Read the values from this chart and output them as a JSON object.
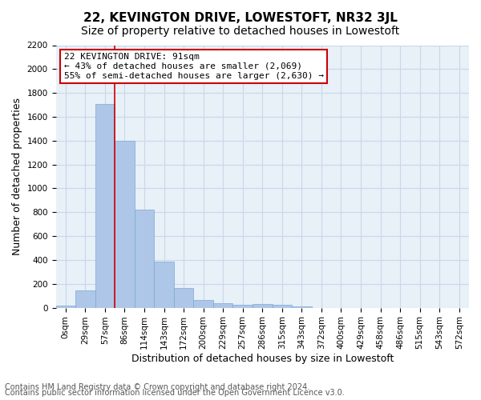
{
  "title": "22, KEVINGTON DRIVE, LOWESTOFT, NR32 3JL",
  "subtitle": "Size of property relative to detached houses in Lowestoft",
  "xlabel": "Distribution of detached houses by size in Lowestoft",
  "ylabel": "Number of detached properties",
  "footnote1": "Contains HM Land Registry data © Crown copyright and database right 2024.",
  "footnote2": "Contains public sector information licensed under the Open Government Licence v3.0.",
  "bin_labels": [
    "0sqm",
    "29sqm",
    "57sqm",
    "86sqm",
    "114sqm",
    "143sqm",
    "172sqm",
    "200sqm",
    "229sqm",
    "257sqm",
    "286sqm",
    "315sqm",
    "343sqm",
    "372sqm",
    "400sqm",
    "429sqm",
    "458sqm",
    "486sqm",
    "515sqm",
    "543sqm",
    "572sqm"
  ],
  "bar_values": [
    15,
    145,
    1710,
    1400,
    820,
    385,
    165,
    65,
    40,
    25,
    30,
    25,
    10,
    0,
    0,
    0,
    0,
    0,
    0,
    0,
    0
  ],
  "bar_color": "#aec6e8",
  "bar_edge_color": "#7aaad0",
  "annotation_box_text": "22 KEVINGTON DRIVE: 91sqm\n← 43% of detached houses are smaller (2,069)\n55% of semi-detached houses are larger (2,630) →",
  "annotation_box_edge_color": "#cc0000",
  "vline_x_index": 3,
  "vline_color": "#cc0000",
  "ylim": [
    0,
    2200
  ],
  "yticks": [
    0,
    200,
    400,
    600,
    800,
    1000,
    1200,
    1400,
    1600,
    1800,
    2000,
    2200
  ],
  "grid_color": "#c8d8e8",
  "bg_color": "#e8f0f8",
  "title_fontsize": 11,
  "subtitle_fontsize": 10,
  "axis_label_fontsize": 9,
  "tick_fontsize": 7.5,
  "annotation_fontsize": 8,
  "footnote_fontsize": 7
}
